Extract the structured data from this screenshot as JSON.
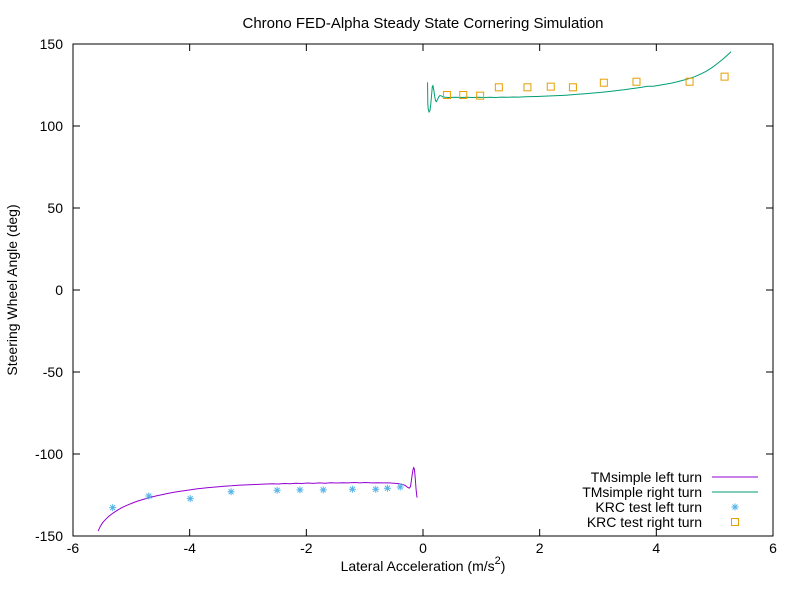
{
  "chart_data": {
    "type": "line",
    "title": "Chrono FED-Alpha Steady State Cornering Simulation",
    "xlabel_prefix": "Lateral Acceleration (m/s",
    "xlabel_sup": "2",
    "xlabel_suffix": ")",
    "ylabel": "Steering Wheel Angle (deg)",
    "xlim": [
      -6,
      6
    ],
    "ylim": [
      -150,
      150
    ],
    "x_ticks": [
      -6,
      -4,
      -2,
      0,
      2,
      4,
      6
    ],
    "y_ticks": [
      -150,
      -100,
      -50,
      0,
      50,
      100,
      150
    ],
    "grid": false,
    "background_color": "#ffffff",
    "frame_color": "#000000",
    "legend_position": "inside bottom right",
    "series": [
      {
        "label": "TMsimple left turn",
        "type": "line",
        "color": "#9400d3",
        "points": [
          [
            -5.57,
            -147.0
          ],
          [
            -5.53,
            -144.0
          ],
          [
            -5.49,
            -141.8
          ],
          [
            -5.44,
            -139.8
          ],
          [
            -5.38,
            -137.8
          ],
          [
            -5.31,
            -135.9
          ],
          [
            -5.24,
            -134.3
          ],
          [
            -5.16,
            -132.7
          ],
          [
            -5.07,
            -131.2
          ],
          [
            -4.98,
            -129.9
          ],
          [
            -4.88,
            -128.6
          ],
          [
            -4.78,
            -127.5
          ],
          [
            -4.68,
            -126.5
          ],
          [
            -4.58,
            -125.6
          ],
          [
            -4.48,
            -124.8
          ],
          [
            -4.38,
            -124.1
          ],
          [
            -4.28,
            -123.4
          ],
          [
            -4.18,
            -122.8
          ],
          [
            -4.08,
            -122.3
          ],
          [
            -3.98,
            -121.8
          ],
          [
            -3.88,
            -121.3
          ],
          [
            -3.78,
            -120.9
          ],
          [
            -3.68,
            -120.5
          ],
          [
            -3.58,
            -120.2
          ],
          [
            -3.48,
            -119.9
          ],
          [
            -3.38,
            -119.6
          ],
          [
            -3.28,
            -119.4
          ],
          [
            -3.18,
            -119.1
          ],
          [
            -3.08,
            -118.9
          ],
          [
            -2.98,
            -118.8
          ],
          [
            -2.88,
            -118.6
          ],
          [
            -2.78,
            -118.4
          ],
          [
            -2.68,
            -118.3
          ],
          [
            -2.58,
            -118.2
          ],
          [
            -2.48,
            -118.3
          ],
          [
            -2.38,
            -118.0
          ],
          [
            -2.28,
            -118.1
          ],
          [
            -2.18,
            -117.8
          ],
          [
            -2.08,
            -118.0
          ],
          [
            -1.98,
            -117.7
          ],
          [
            -1.88,
            -117.9
          ],
          [
            -1.78,
            -117.6
          ],
          [
            -1.68,
            -117.8
          ],
          [
            -1.58,
            -117.5
          ],
          [
            -1.48,
            -117.7
          ],
          [
            -1.38,
            -117.5
          ],
          [
            -1.28,
            -117.6
          ],
          [
            -1.18,
            -117.4
          ],
          [
            -1.08,
            -117.6
          ],
          [
            -0.98,
            -117.4
          ],
          [
            -0.88,
            -117.6
          ],
          [
            -0.78,
            -117.5
          ],
          [
            -0.68,
            -117.6
          ],
          [
            -0.58,
            -117.6
          ],
          [
            -0.5,
            -117.8
          ],
          [
            -0.44,
            -118.0
          ],
          [
            -0.38,
            -118.3
          ],
          [
            -0.33,
            -118.8
          ],
          [
            -0.29,
            -119.6
          ],
          [
            -0.26,
            -120.4
          ],
          [
            -0.235,
            -120.8
          ],
          [
            -0.215,
            -119.8
          ],
          [
            -0.2,
            -116.5
          ],
          [
            -0.185,
            -112.5
          ],
          [
            -0.17,
            -109.3
          ],
          [
            -0.16,
            -108.3
          ],
          [
            -0.15,
            -108.8
          ],
          [
            -0.14,
            -111.5
          ],
          [
            -0.13,
            -116.0
          ],
          [
            -0.12,
            -121.0
          ],
          [
            -0.11,
            -124.5
          ],
          [
            -0.105,
            -126.0
          ],
          [
            -0.1,
            -126.6
          ]
        ]
      },
      {
        "label": "TMsimple right turn",
        "type": "line",
        "color": "#009e73",
        "points": [
          [
            0.077,
            126.6
          ],
          [
            0.08,
            120.0
          ],
          [
            0.083,
            113.5
          ],
          [
            0.09,
            110.0
          ],
          [
            0.105,
            108.6
          ],
          [
            0.12,
            109.5
          ],
          [
            0.135,
            114.0
          ],
          [
            0.15,
            120.5
          ],
          [
            0.16,
            124.0
          ],
          [
            0.17,
            124.6
          ],
          [
            0.185,
            122.0
          ],
          [
            0.2,
            118.0
          ],
          [
            0.215,
            115.5
          ],
          [
            0.23,
            114.9
          ],
          [
            0.25,
            116.2
          ],
          [
            0.27,
            117.8
          ],
          [
            0.29,
            118.6
          ],
          [
            0.31,
            118.4
          ],
          [
            0.34,
            117.8
          ],
          [
            0.38,
            117.5
          ],
          [
            0.45,
            117.4
          ],
          [
            0.55,
            117.5
          ],
          [
            0.65,
            117.4
          ],
          [
            0.75,
            117.5
          ],
          [
            0.85,
            117.4
          ],
          [
            0.95,
            117.5
          ],
          [
            1.05,
            117.4
          ],
          [
            1.15,
            117.5
          ],
          [
            1.25,
            117.4
          ],
          [
            1.35,
            117.6
          ],
          [
            1.45,
            117.5
          ],
          [
            1.55,
            117.7
          ],
          [
            1.65,
            117.6
          ],
          [
            1.75,
            117.8
          ],
          [
            1.85,
            117.9
          ],
          [
            1.95,
            118.0
          ],
          [
            2.05,
            118.1
          ],
          [
            2.15,
            118.3
          ],
          [
            2.25,
            118.4
          ],
          [
            2.35,
            118.6
          ],
          [
            2.45,
            118.8
          ],
          [
            2.55,
            119.0
          ],
          [
            2.65,
            119.3
          ],
          [
            2.75,
            119.6
          ],
          [
            2.85,
            119.9
          ],
          [
            2.95,
            120.2
          ],
          [
            3.05,
            120.5
          ],
          [
            3.15,
            120.9
          ],
          [
            3.25,
            121.3
          ],
          [
            3.35,
            121.7
          ],
          [
            3.45,
            122.1
          ],
          [
            3.55,
            122.6
          ],
          [
            3.65,
            123.1
          ],
          [
            3.75,
            123.6
          ],
          [
            3.85,
            124.2
          ],
          [
            3.95,
            124.2
          ],
          [
            4.05,
            124.8
          ],
          [
            4.15,
            125.4
          ],
          [
            4.25,
            126.1
          ],
          [
            4.35,
            126.9
          ],
          [
            4.45,
            127.8
          ],
          [
            4.55,
            128.8
          ],
          [
            4.65,
            130.0
          ],
          [
            4.75,
            131.5
          ],
          [
            4.85,
            133.3
          ],
          [
            4.95,
            135.5
          ],
          [
            5.05,
            138.2
          ],
          [
            5.15,
            141.0
          ],
          [
            5.22,
            143.3
          ],
          [
            5.28,
            145.3
          ]
        ]
      },
      {
        "label": "KRC test left turn",
        "type": "scatter",
        "marker": "asterisk",
        "color": "#56b4e9",
        "points": [
          [
            -5.32,
            -132.7
          ],
          [
            -4.7,
            -125.6
          ],
          [
            -3.99,
            -127.2
          ],
          [
            -3.29,
            -123.0
          ],
          [
            -2.5,
            -122.1
          ],
          [
            -2.11,
            -121.9
          ],
          [
            -1.71,
            -121.9
          ],
          [
            -1.21,
            -121.5
          ],
          [
            -0.81,
            -121.5
          ],
          [
            -0.61,
            -120.9
          ],
          [
            -0.39,
            -120.1
          ]
        ]
      },
      {
        "label": "KRC test right turn",
        "type": "scatter",
        "marker": "open-square",
        "color": "#e69f00",
        "points": [
          [
            0.41,
            118.9
          ],
          [
            0.69,
            118.9
          ],
          [
            0.98,
            118.5
          ],
          [
            1.3,
            123.6
          ],
          [
            1.79,
            123.6
          ],
          [
            2.19,
            124.0
          ],
          [
            2.57,
            123.6
          ],
          [
            3.1,
            126.4
          ],
          [
            3.66,
            127.0
          ],
          [
            4.57,
            127.0
          ],
          [
            5.17,
            130.1
          ]
        ]
      }
    ]
  }
}
